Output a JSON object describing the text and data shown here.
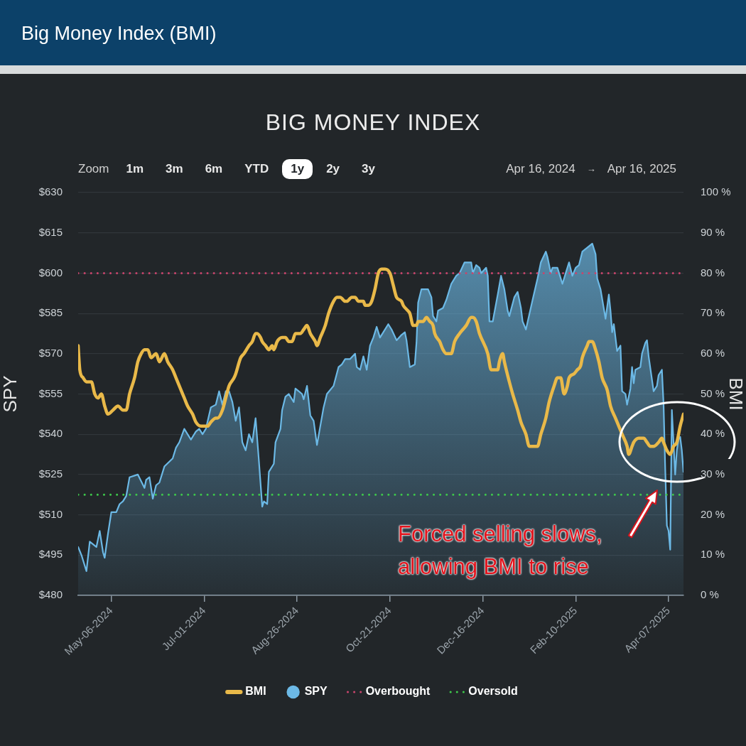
{
  "chart_data": {
    "type": "line",
    "title": "Big Money Index (BMI)",
    "subtitle": "BIG MONEY INDEX",
    "ylabel": "SPY",
    "y2label": "BMI",
    "annotations": [
      "Zoom",
      "1m",
      "3m",
      "6m",
      "YTD",
      "1y",
      "2y",
      "3y",
      "Apr 16, 2024",
      "→",
      "Apr 16, 2025",
      "Forced selling slows, allowing BMI to rise"
    ],
    "xlim": [
      "2024-04-16",
      "2025-04-16"
    ],
    "xticks": [
      {
        "value": "2024-05-06",
        "label": "May-06-2024"
      },
      {
        "value": "2024-07-01",
        "label": "Jul-01-2024"
      },
      {
        "value": "2024-08-26",
        "label": "Aug-26-2024"
      },
      {
        "value": "2024-10-21",
        "label": "Oct-21-2024"
      },
      {
        "value": "2024-12-16",
        "label": "Dec-16-2024"
      },
      {
        "value": "2025-02-10",
        "label": "Feb-10-2025"
      },
      {
        "value": "2025-04-07",
        "label": "Apr-07-2025"
      }
    ],
    "ylim": [
      480,
      630
    ],
    "yticks": [
      {
        "value": 480,
        "label": "$480"
      },
      {
        "value": 495,
        "label": "$495"
      },
      {
        "value": 510,
        "label": "$510"
      },
      {
        "value": 525,
        "label": "$525"
      },
      {
        "value": 540,
        "label": "$540"
      },
      {
        "value": 555,
        "label": "$555"
      },
      {
        "value": 570,
        "label": "$570"
      },
      {
        "value": 585,
        "label": "$585"
      },
      {
        "value": 600,
        "label": "$600"
      },
      {
        "value": 615,
        "label": "$615"
      },
      {
        "value": 630,
        "label": "$630"
      }
    ],
    "y2lim": [
      0,
      100
    ],
    "y2ticks": [
      {
        "value": 0,
        "label": "0 %"
      },
      {
        "value": 10,
        "label": "10 %"
      },
      {
        "value": 20,
        "label": "20 %"
      },
      {
        "value": 30,
        "label": "30 %"
      },
      {
        "value": 40,
        "label": "40 %"
      },
      {
        "value": 50,
        "label": "50 %"
      },
      {
        "value": 60,
        "label": "60 %"
      },
      {
        "value": 70,
        "label": "70 %"
      },
      {
        "value": 80,
        "label": "80 %"
      },
      {
        "value": 90,
        "label": "90 %"
      },
      {
        "value": 100,
        "label": "100 %"
      }
    ],
    "grid": "y",
    "legend": "bottom",
    "ref_lines": [
      {
        "axis": "y2",
        "value": 80,
        "label": "Overbought",
        "color": "#c8456c",
        "line_style": "dotted"
      },
      {
        "axis": "y2",
        "value": 25,
        "label": "Oversold",
        "color": "#3ec84b",
        "line_style": "dotted"
      }
    ],
    "series": [
      {
        "name": "BMI",
        "type": "line",
        "axis": "y2",
        "color": "#e9b949",
        "x": [
          "2024-04-16",
          "2024-04-17",
          "2024-04-19",
          "2024-04-21",
          "2024-04-24",
          "2024-04-26",
          "2024-04-28",
          "2024-04-30",
          "2024-05-02",
          "2024-05-04",
          "2024-05-07",
          "2024-05-10",
          "2024-05-13",
          "2024-05-15",
          "2024-05-17",
          "2024-05-20",
          "2024-05-22",
          "2024-05-24",
          "2024-05-26",
          "2024-05-28",
          "2024-05-30",
          "2024-06-02",
          "2024-06-04",
          "2024-06-07",
          "2024-06-09",
          "2024-06-12",
          "2024-06-14",
          "2024-06-17",
          "2024-06-19",
          "2024-06-21",
          "2024-06-24",
          "2024-06-26",
          "2024-06-29",
          "2024-07-01",
          "2024-07-03",
          "2024-07-05",
          "2024-07-08",
          "2024-07-09",
          "2024-07-12",
          "2024-07-14",
          "2024-07-16",
          "2024-07-19",
          "2024-07-20",
          "2024-07-23",
          "2024-07-25",
          "2024-07-28",
          "2024-07-30",
          "2024-08-01",
          "2024-08-02",
          "2024-08-04",
          "2024-08-05",
          "2024-08-07",
          "2024-08-09",
          "2024-08-11",
          "2024-08-12",
          "2024-08-14",
          "2024-08-17",
          "2024-08-19",
          "2024-08-21",
          "2024-08-23",
          "2024-08-25",
          "2024-08-28",
          "2024-08-30",
          "2024-09-01",
          "2024-09-03",
          "2024-09-06",
          "2024-09-07",
          "2024-09-09",
          "2024-09-12",
          "2024-09-14",
          "2024-09-17",
          "2024-09-19",
          "2024-09-21",
          "2024-09-24",
          "2024-09-25",
          "2024-09-28",
          "2024-09-30",
          "2024-10-02",
          "2024-10-05",
          "2024-10-06",
          "2024-10-08",
          "2024-10-10",
          "2024-10-12",
          "2024-10-14",
          "2024-10-16",
          "2024-10-18",
          "2024-10-21",
          "2024-10-23",
          "2024-10-25",
          "2024-10-28",
          "2024-10-29",
          "2024-10-31",
          "2024-11-02",
          "2024-11-04",
          "2024-11-06",
          "2024-11-07",
          "2024-11-10",
          "2024-11-12",
          "2024-11-14",
          "2024-11-16",
          "2024-11-17",
          "2024-11-20",
          "2024-11-22",
          "2024-11-24",
          "2024-11-27",
          "2024-11-29",
          "2024-12-02",
          "2024-12-04",
          "2024-12-06",
          "2024-12-09",
          "2024-12-10",
          "2024-12-12",
          "2024-12-14",
          "2024-12-19",
          "2024-12-21",
          "2024-12-23",
          "2024-12-25",
          "2024-12-26",
          "2024-12-28",
          "2024-12-29",
          "2025-01-01",
          "2025-01-03",
          "2025-01-06",
          "2025-01-08",
          "2025-01-11",
          "2025-01-13",
          "2025-01-15",
          "2025-01-18",
          "2025-01-20",
          "2025-01-23",
          "2025-01-25",
          "2025-01-28",
          "2025-01-30",
          "2025-02-01",
          "2025-02-03",
          "2025-02-05",
          "2025-02-06",
          "2025-02-09",
          "2025-02-11",
          "2025-02-13",
          "2025-02-14",
          "2025-02-17",
          "2025-02-18",
          "2025-02-20",
          "2025-02-22",
          "2025-02-24",
          "2025-02-26",
          "2025-03-01",
          "2025-03-03",
          "2025-03-06",
          "2025-03-08",
          "2025-03-10",
          "2025-03-13",
          "2025-03-14",
          "2025-03-16",
          "2025-03-17",
          "2025-03-20",
          "2025-03-21",
          "2025-03-23",
          "2025-03-25",
          "2025-03-27",
          "2025-03-29",
          "2025-04-01",
          "2025-04-03",
          "2025-04-04",
          "2025-04-06",
          "2025-04-08",
          "2025-04-10",
          "2025-04-12",
          "2025-04-14",
          "2025-04-16"
        ],
        "values": [
          62,
          56,
          54,
          53,
          53,
          50,
          49,
          50,
          47,
          45,
          46,
          47,
          46,
          46,
          50,
          54,
          58,
          60,
          61,
          61,
          59,
          60,
          58,
          60,
          58,
          56,
          54,
          51,
          49,
          47,
          45,
          43,
          42,
          42,
          42,
          43,
          44,
          44,
          46,
          49,
          52,
          54,
          55,
          59,
          60,
          62,
          63,
          65,
          65,
          64,
          63,
          62,
          61,
          62,
          61,
          63,
          64,
          64,
          63,
          63,
          65,
          65,
          66,
          67,
          65,
          63,
          62,
          64,
          67,
          70,
          73,
          74,
          74,
          73,
          73,
          74,
          74,
          73,
          73,
          72,
          72,
          73,
          76,
          80,
          81,
          81,
          80,
          77,
          74,
          73,
          72,
          71,
          70,
          67,
          67,
          68,
          68,
          69,
          68,
          67,
          65,
          63,
          61,
          60,
          60,
          63,
          65,
          66,
          67,
          69,
          69,
          68,
          65,
          60,
          56,
          56,
          56,
          58,
          60,
          58,
          53,
          50,
          46,
          43,
          40,
          37,
          37,
          37,
          40,
          44,
          48,
          52,
          54,
          54,
          50,
          52,
          54,
          55,
          56,
          57,
          59,
          62,
          63,
          63,
          61,
          58,
          54,
          51,
          47,
          44,
          42,
          40,
          37,
          35,
          37,
          38,
          39,
          39,
          39,
          38,
          37,
          37,
          38,
          39,
          38,
          36,
          35,
          37,
          38,
          42,
          45
        ]
      },
      {
        "name": "SPY",
        "type": "area",
        "color": "#6cb9e6",
        "x": [
          "2024-04-16",
          "2024-04-18",
          "2024-04-21",
          "2024-04-23",
          "2024-04-25",
          "2024-04-27",
          "2024-04-29",
          "2024-05-01",
          "2024-05-02",
          "2024-05-04",
          "2024-05-06",
          "2024-05-09",
          "2024-05-11",
          "2024-05-13",
          "2024-05-15",
          "2024-05-17",
          "2024-05-22",
          "2024-05-26",
          "2024-05-27",
          "2024-05-29",
          "2024-05-31",
          "2024-06-02",
          "2024-06-04",
          "2024-06-07",
          "2024-06-12",
          "2024-06-14",
          "2024-06-16",
          "2024-06-19",
          "2024-06-23",
          "2024-06-26",
          "2024-06-28",
          "2024-06-30",
          "2024-07-02",
          "2024-07-05",
          "2024-07-08",
          "2024-07-10",
          "2024-07-12",
          "2024-07-14",
          "2024-07-16",
          "2024-07-18",
          "2024-07-20",
          "2024-07-22",
          "2024-07-24",
          "2024-07-26",
          "2024-07-28",
          "2024-07-30",
          "2024-08-01",
          "2024-08-03",
          "2024-08-05",
          "2024-08-06",
          "2024-08-08",
          "2024-08-09",
          "2024-08-12",
          "2024-08-13",
          "2024-08-16",
          "2024-08-17",
          "2024-08-19",
          "2024-08-21",
          "2024-08-24",
          "2024-08-25",
          "2024-08-27",
          "2024-08-29",
          "2024-08-30",
          "2024-09-01",
          "2024-09-03",
          "2024-09-05",
          "2024-09-07",
          "2024-09-09",
          "2024-09-11",
          "2024-09-13",
          "2024-09-17",
          "2024-09-20",
          "2024-09-22",
          "2024-09-24",
          "2024-09-27",
          "2024-09-30",
          "2024-10-01",
          "2024-10-03",
          "2024-10-05",
          "2024-10-07",
          "2024-10-09",
          "2024-10-11",
          "2024-10-13",
          "2024-10-15",
          "2024-10-17",
          "2024-10-20",
          "2024-10-22",
          "2024-10-25",
          "2024-10-28",
          "2024-10-30",
          "2024-10-31",
          "2024-11-02",
          "2024-11-05",
          "2024-11-06",
          "2024-11-07",
          "2024-11-09",
          "2024-11-13",
          "2024-11-15",
          "2024-11-16",
          "2024-11-18",
          "2024-11-19",
          "2024-11-22",
          "2024-11-24",
          "2024-11-27",
          "2024-11-30",
          "2024-12-02",
          "2024-12-05",
          "2024-12-09",
          "2024-12-10",
          "2024-12-12",
          "2024-12-14",
          "2024-12-15",
          "2024-12-18",
          "2024-12-19",
          "2024-12-20",
          "2024-12-22",
          "2024-12-25",
          "2024-12-27",
          "2024-12-29",
          "2024-12-31",
          "2025-01-01",
          "2025-01-04",
          "2025-01-06",
          "2025-01-08",
          "2025-01-09",
          "2025-01-11",
          "2025-01-15",
          "2025-01-18",
          "2025-01-20",
          "2025-01-23",
          "2025-01-24",
          "2025-01-26",
          "2025-01-27",
          "2025-01-30",
          "2025-01-31",
          "2025-02-02",
          "2025-02-04",
          "2025-02-06",
          "2025-02-08",
          "2025-02-10",
          "2025-02-12",
          "2025-02-14",
          "2025-02-18",
          "2025-02-20",
          "2025-02-22",
          "2025-02-23",
          "2025-02-25",
          "2025-02-28",
          "2025-03-02",
          "2025-03-03",
          "2025-03-04",
          "2025-03-05",
          "2025-03-07",
          "2025-03-09",
          "2025-03-10",
          "2025-03-12",
          "2025-03-13",
          "2025-03-15",
          "2025-03-16",
          "2025-03-17",
          "2025-03-18",
          "2025-03-21",
          "2025-03-22",
          "2025-03-24",
          "2025-03-25",
          "2025-03-26",
          "2025-03-29",
          "2025-03-31",
          "2025-04-01",
          "2025-04-03",
          "2025-04-04",
          "2025-04-05",
          "2025-04-06",
          "2025-04-07",
          "2025-04-08",
          "2025-04-09",
          "2025-04-11",
          "2025-04-12",
          "2025-04-13",
          "2025-04-14",
          "2025-04-15",
          "2025-04-16"
        ],
        "values": [
          498,
          495,
          489,
          500,
          499,
          498,
          504,
          496,
          494,
          503,
          511,
          511,
          514,
          515,
          517,
          524,
          525,
          520,
          523,
          524,
          516,
          521,
          522,
          528,
          531,
          535,
          537,
          542,
          538,
          541,
          542,
          540,
          542,
          550,
          551,
          556,
          551,
          556,
          556,
          552,
          545,
          550,
          537,
          534,
          540,
          537,
          546,
          530,
          513,
          515,
          514,
          526,
          529,
          537,
          542,
          549,
          554,
          555,
          552,
          557,
          556,
          555,
          553,
          558,
          547,
          545,
          536,
          543,
          550,
          555,
          558,
          565,
          566,
          568,
          568,
          570,
          565,
          564,
          569,
          564,
          573,
          576,
          580,
          576,
          578,
          581,
          579,
          575,
          577,
          578,
          575,
          565,
          566,
          574,
          589,
          594,
          594,
          591,
          584,
          582,
          586,
          587,
          590,
          596,
          599,
          600,
          604,
          604,
          600,
          603,
          602,
          600,
          602,
          599,
          582,
          582,
          592,
          599,
          594,
          586,
          584,
          591,
          593,
          587,
          582,
          579,
          590,
          598,
          604,
          608,
          606,
          600,
          602,
          602,
          600,
          596,
          600,
          604,
          599,
          602,
          603,
          608,
          610,
          611,
          607,
          598,
          594,
          583,
          592,
          586,
          578,
          581,
          571,
          573,
          556,
          555,
          551,
          557,
          565,
          559,
          564,
          565,
          570,
          574,
          575,
          569,
          556,
          558,
          562,
          564,
          551,
          527,
          506,
          504,
          497,
          549,
          525,
          534,
          538,
          539,
          534,
          526
        ]
      }
    ]
  }
}
